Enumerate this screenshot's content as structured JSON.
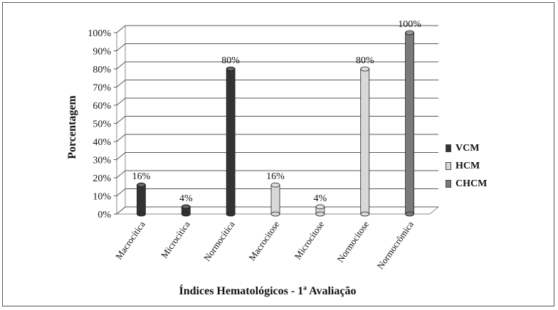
{
  "chart_data": {
    "type": "bar",
    "title": "",
    "xlabel": "Índices Hematológicos - 1ª Avaliação",
    "ylabel": "Porcentagem",
    "ylim": [
      0,
      100
    ],
    "yticks": [
      "0%",
      "10%",
      "20%",
      "30%",
      "40%",
      "50%",
      "60%",
      "70%",
      "80%",
      "90%",
      "100%"
    ],
    "categories": [
      "Macrocítica",
      "Microcítica",
      "Normocítica",
      "Macrocitose",
      "Microcitose",
      "Normocitose",
      "Normocrômica"
    ],
    "series": [
      {
        "name": "VCM",
        "color": "#333333",
        "values": [
          16,
          4,
          80,
          null,
          null,
          null,
          null
        ],
        "labels": [
          "16%",
          "4%",
          "80%",
          "",
          "",
          "",
          ""
        ]
      },
      {
        "name": "HCM",
        "color": "#d8d8d8",
        "values": [
          null,
          null,
          null,
          16,
          4,
          80,
          null
        ],
        "labels": [
          "",
          "",
          "",
          "16%",
          "4%",
          "80%",
          ""
        ]
      },
      {
        "name": "CHCM",
        "color": "#7a7a7a",
        "values": [
          null,
          null,
          null,
          null,
          null,
          null,
          100
        ],
        "labels": [
          "",
          "",
          "",
          "",
          "",
          "",
          "100%"
        ]
      }
    ],
    "legend_position": "right",
    "grid": true
  }
}
